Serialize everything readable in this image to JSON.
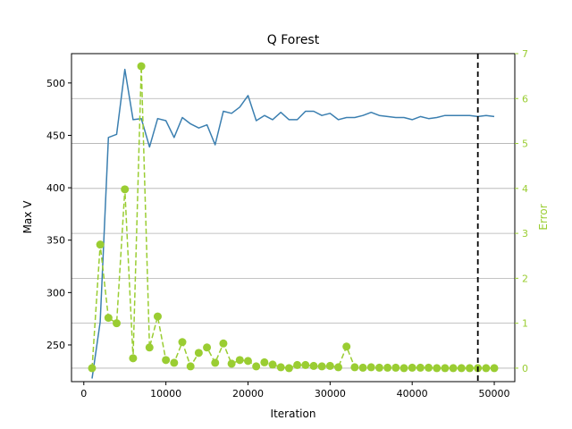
{
  "chart_data": {
    "type": "line",
    "title": "Q Forest",
    "xlabel": "Iteration",
    "ylabel": "Max V",
    "y2label": "Error",
    "xlim": [
      -1500,
      52500
    ],
    "ylim": [
      215,
      528
    ],
    "y2lim": [
      -0.3,
      7
    ],
    "xticks": [
      0,
      10000,
      20000,
      30000,
      40000,
      50000
    ],
    "xtick_labels": [
      "0",
      "10000",
      "20000",
      "30000",
      "40000",
      "50000"
    ],
    "yticks": [
      250,
      300,
      350,
      400,
      450,
      500
    ],
    "ytick_labels": [
      "250",
      "300",
      "350",
      "400",
      "450",
      "500"
    ],
    "y2ticks": [
      0,
      1,
      2,
      3,
      4,
      5,
      6,
      7
    ],
    "y2tick_labels": [
      "0",
      "1",
      "2",
      "3",
      "4",
      "5",
      "6",
      "7"
    ],
    "grid": "horizontal lines on secondary axis",
    "vline_x": 48000,
    "colors": {
      "maxv": "#3b7fb0",
      "error": "#9acd32",
      "vline": "#000000",
      "grid": "#b0b0b0"
    },
    "series": [
      {
        "axis": "left",
        "style": "solid",
        "x": [
          1000,
          2000,
          3000,
          4000,
          5000,
          6000,
          7000,
          8000,
          9000,
          10000,
          11000,
          12000,
          13000,
          14000,
          15000,
          16000,
          17000,
          18000,
          19000,
          20000,
          21000,
          22000,
          23000,
          24000,
          25000,
          26000,
          27000,
          28000,
          29000,
          30000,
          31000,
          32000,
          33000,
          34000,
          35000,
          36000,
          37000,
          38000,
          39000,
          40000,
          41000,
          42000,
          43000,
          44000,
          45000,
          46000,
          47000,
          48000,
          49000,
          50000
        ],
        "values": [
          218,
          272,
          448,
          451,
          513,
          465,
          466,
          439,
          466,
          464,
          448,
          467,
          461,
          457,
          460,
          441,
          473,
          471,
          477,
          488,
          464,
          469,
          465,
          472,
          465,
          465,
          473,
          473,
          469,
          471,
          465,
          467,
          467,
          469,
          472,
          469,
          468,
          467,
          467,
          465,
          468,
          466,
          467,
          469,
          469,
          469,
          469,
          468,
          469,
          468
        ]
      },
      {
        "axis": "right",
        "style": "dashed",
        "marker": "circle",
        "x": [
          1000,
          2000,
          3000,
          4000,
          5000,
          6000,
          7000,
          8000,
          9000,
          10000,
          11000,
          12000,
          13000,
          14000,
          15000,
          16000,
          17000,
          18000,
          19000,
          20000,
          21000,
          22000,
          23000,
          24000,
          25000,
          26000,
          27000,
          28000,
          29000,
          30000,
          31000,
          32000,
          33000,
          34000,
          35000,
          36000,
          37000,
          38000,
          39000,
          40000,
          41000,
          42000,
          43000,
          44000,
          45000,
          46000,
          47000,
          48000,
          49000,
          50000
        ],
        "values": [
          0.0,
          2.75,
          1.12,
          1.0,
          3.98,
          0.22,
          6.72,
          0.46,
          1.15,
          0.18,
          0.12,
          0.58,
          0.04,
          0.34,
          0.46,
          0.12,
          0.55,
          0.1,
          0.18,
          0.16,
          0.04,
          0.13,
          0.08,
          0.02,
          0.0,
          0.07,
          0.07,
          0.05,
          0.04,
          0.05,
          0.02,
          0.48,
          0.02,
          0.01,
          0.02,
          0.01,
          0.01,
          0.01,
          0.0,
          0.01,
          0.01,
          0.01,
          0.0,
          0.0,
          0.0,
          0.0,
          0.0,
          0.0,
          0.0,
          0.0
        ]
      }
    ]
  }
}
